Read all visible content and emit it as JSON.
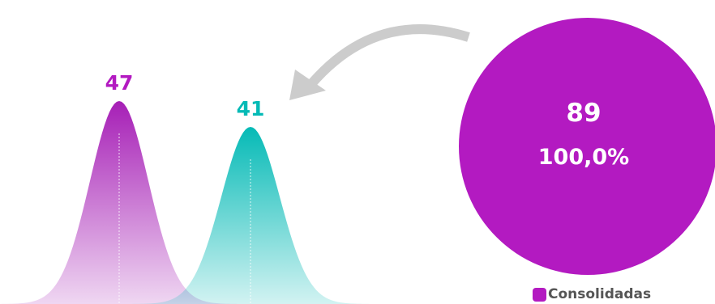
{
  "colors": {
    "accent": "#b31ac1",
    "teal": "#05bab6",
    "arrow": "#cccccc"
  },
  "chart_data": [
    {
      "type": "area",
      "categories": [
        "",
        ""
      ],
      "series": [
        {
          "values": [
            47,
            41
          ]
        }
      ],
      "data_labels": [
        "47",
        "41"
      ]
    },
    {
      "type": "pie",
      "slices": [
        {
          "name": "Consolidadas",
          "value": 89,
          "percent": "100,0%"
        }
      ],
      "center_value": "89",
      "center_percent": "100,0%",
      "legend": "bottom"
    }
  ]
}
